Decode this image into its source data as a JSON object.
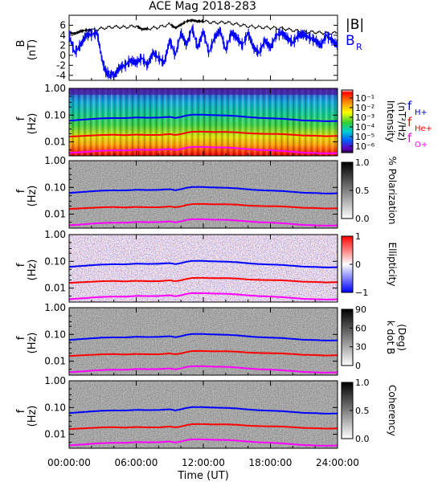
{
  "chart_data": [
    {
      "id": "mag",
      "type": "line",
      "title": "ACE Mag 2018-283",
      "ylabel": "B",
      "yunit": "(nT)",
      "yticks": [
        "6",
        "4",
        "2",
        "0",
        "-2",
        "-4"
      ],
      "ylim": [
        -5,
        8
      ],
      "xlim_hours": [
        0,
        24
      ],
      "series": [
        {
          "name": "|B|",
          "color": "#000000",
          "hours": [
            0,
            0.5,
            1,
            1.5,
            2,
            3,
            4,
            5,
            6,
            6.5,
            7,
            8,
            9,
            9.5,
            10,
            10.5,
            11,
            11.5,
            12,
            13,
            14,
            15,
            16,
            17,
            18,
            19,
            20,
            21,
            22,
            23,
            24
          ],
          "values": [
            4.6,
            4.3,
            4.8,
            5.0,
            5.0,
            5.4,
            5.7,
            5.6,
            5.9,
            5.2,
            5.3,
            5.6,
            6.2,
            5.5,
            6.1,
            6.8,
            7.0,
            6.8,
            6.8,
            6.5,
            6.6,
            6.2,
            5.8,
            5.6,
            5.5,
            5.4,
            5.0,
            4.7,
            4.6,
            4.4,
            4.5
          ]
        },
        {
          "name": "B",
          "subscript": "R",
          "color": "#0000ff",
          "hours": [
            0,
            0.5,
            1,
            1.5,
            2,
            2.5,
            3,
            3.3,
            3.6,
            4,
            4.5,
            5,
            5.5,
            6,
            6.5,
            7,
            7.5,
            8,
            8.5,
            9,
            9.5,
            10,
            10.5,
            11,
            11.5,
            12,
            12.5,
            13,
            13.5,
            14,
            14.5,
            15,
            15.5,
            16,
            16.5,
            17,
            17.5,
            18,
            18.5,
            19,
            19.5,
            20,
            20.5,
            21,
            21.5,
            22,
            22.5,
            23,
            23.5,
            24
          ],
          "values": [
            4.0,
            0.5,
            2.0,
            4.0,
            4.2,
            4.5,
            -1.5,
            -3.5,
            -3.8,
            -4.2,
            -2.5,
            -2.0,
            -1.0,
            -1.5,
            -0.5,
            -2.0,
            0.5,
            -0.5,
            -1.5,
            3.0,
            0.0,
            4.5,
            2.0,
            5.5,
            1.5,
            4.8,
            0.5,
            3.5,
            5.0,
            1.0,
            4.5,
            3.5,
            2.0,
            4.5,
            1.5,
            0.5,
            3.0,
            1.5,
            4.0,
            4.5,
            3.5,
            2.5,
            4.0,
            4.2,
            3.5,
            3.0,
            2.0,
            4.0,
            3.0,
            2.0
          ]
        }
      ]
    },
    {
      "id": "intensity",
      "type": "heatmap",
      "ylabel": "f",
      "yunit": "(Hz)",
      "yticks": [
        "1.00",
        "0.10",
        "0.01"
      ],
      "ylim": [
        0.003,
        1.0
      ],
      "colorbar": {
        "label": "Intensity",
        "unit": "(nT²/Hz)",
        "ticks": [
          "10⁻¹",
          "10⁻²",
          "10⁻³",
          "10⁻⁴",
          "10⁻⁵",
          "10⁻⁶"
        ],
        "scale": "rainbow"
      }
    },
    {
      "id": "polarization",
      "type": "heatmap",
      "ylabel": "f",
      "yunit": "(Hz)",
      "yticks": [
        "1.00",
        "0.10",
        "0.01"
      ],
      "ylim": [
        0.003,
        1.0
      ],
      "colorbar": {
        "label": "% Polarization",
        "ticks": [
          "1.0",
          "0.5",
          "0.0"
        ],
        "scale": "gray-reversed"
      }
    },
    {
      "id": "ellipticity",
      "type": "heatmap",
      "ylabel": "f",
      "yunit": "(Hz)",
      "yticks": [
        "1.00",
        "0.10",
        "0.01"
      ],
      "ylim": [
        0.003,
        1.0
      ],
      "colorbar": {
        "label": "Ellipticity",
        "ticks": [
          "1",
          "0",
          "−1"
        ],
        "scale": "blue-white-red"
      }
    },
    {
      "id": "kdotb",
      "type": "heatmap",
      "ylabel": "f",
      "yunit": "(Hz)",
      "yticks": [
        "1.00",
        "0.10",
        "0.01"
      ],
      "ylim": [
        0.003,
        1.0
      ],
      "colorbar": {
        "label": "k dot B",
        "unit": "(Deg)",
        "ticks": [
          "90",
          "60",
          "30",
          "0"
        ],
        "scale": "gray-reversed"
      }
    },
    {
      "id": "coherency",
      "type": "heatmap",
      "ylabel": "f",
      "yunit": "(Hz)",
      "yticks": [
        "1.00",
        "0.10",
        "0.01"
      ],
      "ylim": [
        0.003,
        1.0
      ],
      "colorbar": {
        "label": "Coherency",
        "ticks": [
          "1.0",
          "0.5",
          "0.0"
        ],
        "scale": "gray-reversed"
      }
    }
  ],
  "gyro_lines": [
    {
      "name": "f",
      "subscript": "H+",
      "color": "#0000ff",
      "hours": [
        0,
        1,
        2,
        3,
        4,
        5,
        6,
        7,
        8,
        9,
        9.5,
        10,
        10.5,
        11,
        12,
        13,
        14,
        15,
        16,
        17,
        18,
        19,
        20,
        21,
        22,
        23,
        24
      ],
      "values_hz": [
        0.062,
        0.066,
        0.07,
        0.074,
        0.075,
        0.074,
        0.078,
        0.076,
        0.077,
        0.082,
        0.075,
        0.082,
        0.093,
        0.1,
        0.1,
        0.097,
        0.096,
        0.092,
        0.085,
        0.08,
        0.078,
        0.076,
        0.071,
        0.066,
        0.065,
        0.062,
        0.063
      ]
    },
    {
      "name": "f",
      "subscript": "He+",
      "color": "#ff0000",
      "hours": [
        0,
        1,
        2,
        3,
        4,
        5,
        6,
        7,
        8,
        9,
        9.5,
        10,
        10.5,
        11,
        12,
        13,
        14,
        15,
        16,
        17,
        18,
        19,
        20,
        21,
        22,
        23,
        24
      ],
      "values_hz": [
        0.0155,
        0.0165,
        0.0175,
        0.0185,
        0.019,
        0.0185,
        0.0195,
        0.019,
        0.019,
        0.0205,
        0.019,
        0.0205,
        0.023,
        0.025,
        0.025,
        0.024,
        0.024,
        0.023,
        0.021,
        0.02,
        0.0195,
        0.019,
        0.0178,
        0.0165,
        0.0162,
        0.0155,
        0.0158
      ]
    },
    {
      "name": "f",
      "subscript": "O+",
      "color": "#ff00ff",
      "hours": [
        0,
        1,
        2,
        3,
        4,
        5,
        6,
        7,
        8,
        9,
        9.5,
        10,
        10.5,
        11,
        12,
        13,
        14,
        15,
        16,
        17,
        18,
        19,
        20,
        21,
        22,
        23,
        24
      ],
      "values_hz": [
        0.0039,
        0.0041,
        0.0044,
        0.0046,
        0.0047,
        0.0046,
        0.0049,
        0.0048,
        0.0048,
        0.0051,
        0.0047,
        0.0051,
        0.0058,
        0.0062,
        0.0062,
        0.006,
        0.006,
        0.0057,
        0.0053,
        0.005,
        0.0049,
        0.0047,
        0.0044,
        0.0041,
        0.004,
        0.0039,
        0.004
      ]
    }
  ],
  "x_axis": {
    "label": "Time (UT)",
    "tick_hours": [
      0,
      6,
      12,
      18,
      24
    ],
    "tick_labels": [
      "00:00:00",
      "06:00:00",
      "12:00:00",
      "18:00:00",
      "24:00:00"
    ]
  }
}
